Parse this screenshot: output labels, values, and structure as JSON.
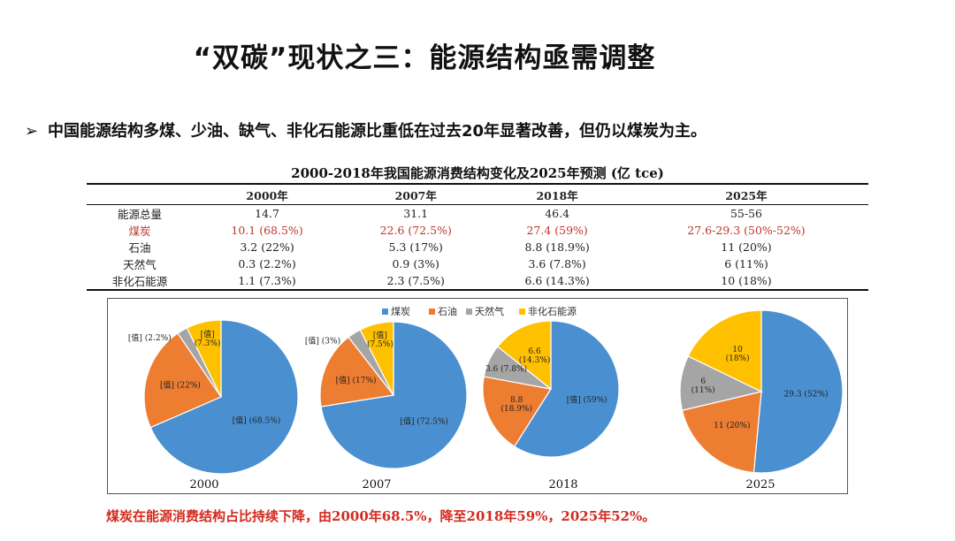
{
  "slide": {
    "title": "“双碳”现状之三：能源结构亟需调整",
    "bullet_marker": "➢",
    "bullet": "中国能源结构多煤、少油、缺气、非化石能源比重低在过去20年显著改善，但仍以煤炭为主。",
    "conclusion": "煤炭在能源消费结构占比持续下降，由2000年68.5%，降至2018年59%，2025年52%。"
  },
  "table": {
    "title": "2000-2018年我国能源消费结构变化及2025年预测 (亿 tce)",
    "header": [
      "",
      "2000年",
      "2007年",
      "2018年",
      "2025年"
    ],
    "rows": [
      {
        "label": "能源总量",
        "cells": [
          "14.7",
          "31.1",
          "46.4",
          "55-56"
        ]
      },
      {
        "label": "煤炭",
        "cells": [
          "10.1 (68.5%)",
          "22.6 (72.5%)",
          "27.4 (59%)",
          "27.6-29.3 (50%-52%)"
        ]
      },
      {
        "label": "石油",
        "cells": [
          "3.2 (22%)",
          "5.3 (17%)",
          "8.8 (18.9%)",
          "11 (20%)"
        ]
      },
      {
        "label": "天然气",
        "cells": [
          "0.3 (2.2%)",
          "0.9 (3%)",
          "3.6 (7.8%)",
          "6 (11%)"
        ]
      },
      {
        "label": "非化石能源",
        "cells": [
          "1.1 (7.3%)",
          "2.3 (7.5%)",
          "6.6 (14.3%)",
          "10 (18%)"
        ]
      }
    ]
  },
  "chart_data": {
    "type": "pie",
    "legend": [
      "煤炭",
      "石油",
      "天然气",
      "非化石能源"
    ],
    "legend_position": "top",
    "colors": [
      "#4a90d0",
      "#ed7d31",
      "#a5a5a5",
      "#ffc000"
    ],
    "pies": [
      {
        "year": "2000",
        "values": [
          68.5,
          22,
          2.2,
          7.3
        ],
        "labels": [
          [
            "[值] (68.5%)"
          ],
          [
            "[值] (22%)"
          ],
          [
            "[值] (2.2%)"
          ],
          [
            "[值]",
            "(7.3%)"
          ]
        ]
      },
      {
        "year": "2007",
        "values": [
          72.5,
          17,
          3,
          7.5
        ],
        "labels": [
          [
            "[值] (72.5%)"
          ],
          [
            "[值] (17%)"
          ],
          [
            "[值] (3%)"
          ],
          [
            "[值]",
            "(7.5%)"
          ]
        ]
      },
      {
        "year": "2018",
        "values": [
          59,
          18.9,
          7.8,
          14.3
        ],
        "labels": [
          [
            "[值] (59%)"
          ],
          [
            "8.8",
            "(18.9%)"
          ],
          [
            "3.6 (7.8%)"
          ],
          [
            "6.6",
            "(14.3%)"
          ]
        ]
      },
      {
        "year": "2025",
        "values": [
          52,
          20,
          11,
          18
        ],
        "labels": [
          [
            "29.3 (52%)"
          ],
          [
            "11 (20%)"
          ],
          [
            "6",
            "(11%)"
          ],
          [
            "10",
            "(18%)"
          ]
        ]
      }
    ]
  }
}
